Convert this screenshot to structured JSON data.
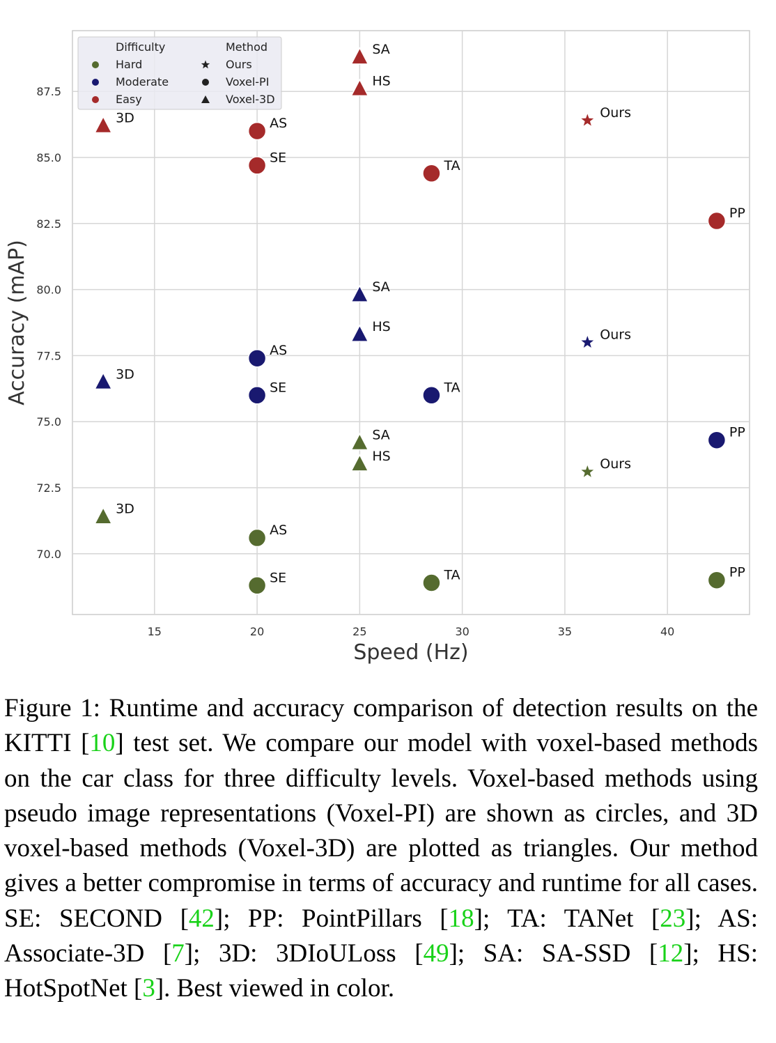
{
  "chart_data": {
    "type": "scatter",
    "xlabel": "Speed (Hz)",
    "ylabel": "Accuracy (mAP)",
    "xlim": [
      11,
      44
    ],
    "ylim": [
      67.7,
      89.8
    ],
    "xticks": [
      15,
      20,
      25,
      30,
      35,
      40
    ],
    "yticks": [
      70.0,
      72.5,
      75.0,
      77.5,
      80.0,
      82.5,
      85.0,
      87.5
    ],
    "xtick_labels": [
      "15",
      "20",
      "25",
      "30",
      "35",
      "40"
    ],
    "ytick_labels": [
      "70.0",
      "72.5",
      "75.0",
      "77.5",
      "80.0",
      "82.5",
      "85.0",
      "87.5"
    ],
    "grid": true,
    "legend": {
      "placement": "top-left",
      "difficulty_title": "Difficulty",
      "method_title": "Method",
      "difficulty": [
        {
          "name": "Hard",
          "color": "#556b2f"
        },
        {
          "name": "Moderate",
          "color": "#191970"
        },
        {
          "name": "Easy",
          "color": "#a52a2a"
        }
      ],
      "methods": [
        {
          "name": "Ours",
          "marker": "star"
        },
        {
          "name": "Voxel-PI",
          "marker": "circle"
        },
        {
          "name": "Voxel-3D",
          "marker": "triangle"
        }
      ]
    },
    "series": [
      {
        "name": "Easy",
        "color": "#a52a2a",
        "points": [
          {
            "label": "3D",
            "x": 12.5,
            "y": 86.2,
            "method": "Voxel-3D"
          },
          {
            "label": "AS",
            "x": 20.0,
            "y": 86.0,
            "method": "Voxel-PI"
          },
          {
            "label": "SE",
            "x": 20.0,
            "y": 84.7,
            "method": "Voxel-PI"
          },
          {
            "label": "SA",
            "x": 25.0,
            "y": 88.8,
            "method": "Voxel-3D"
          },
          {
            "label": "HS",
            "x": 25.0,
            "y": 87.6,
            "method": "Voxel-3D"
          },
          {
            "label": "TA",
            "x": 28.5,
            "y": 84.4,
            "method": "Voxel-PI"
          },
          {
            "label": "Ours",
            "x": 36.1,
            "y": 86.4,
            "method": "Ours"
          },
          {
            "label": "PP",
            "x": 42.4,
            "y": 82.6,
            "method": "Voxel-PI"
          }
        ]
      },
      {
        "name": "Moderate",
        "color": "#191970",
        "points": [
          {
            "label": "3D",
            "x": 12.5,
            "y": 76.5,
            "method": "Voxel-3D"
          },
          {
            "label": "AS",
            "x": 20.0,
            "y": 77.4,
            "method": "Voxel-PI"
          },
          {
            "label": "SE",
            "x": 20.0,
            "y": 76.0,
            "method": "Voxel-PI"
          },
          {
            "label": "SA",
            "x": 25.0,
            "y": 79.8,
            "method": "Voxel-3D"
          },
          {
            "label": "HS",
            "x": 25.0,
            "y": 78.3,
            "method": "Voxel-3D"
          },
          {
            "label": "TA",
            "x": 28.5,
            "y": 76.0,
            "method": "Voxel-PI"
          },
          {
            "label": "Ours",
            "x": 36.1,
            "y": 78.0,
            "method": "Ours"
          },
          {
            "label": "PP",
            "x": 42.4,
            "y": 74.3,
            "method": "Voxel-PI"
          }
        ]
      },
      {
        "name": "Hard",
        "color": "#556b2f",
        "points": [
          {
            "label": "3D",
            "x": 12.5,
            "y": 71.4,
            "method": "Voxel-3D"
          },
          {
            "label": "AS",
            "x": 20.0,
            "y": 70.6,
            "method": "Voxel-PI"
          },
          {
            "label": "SE",
            "x": 20.0,
            "y": 68.8,
            "method": "Voxel-PI"
          },
          {
            "label": "SA",
            "x": 25.0,
            "y": 74.2,
            "method": "Voxel-3D"
          },
          {
            "label": "HS",
            "x": 25.0,
            "y": 73.4,
            "method": "Voxel-3D"
          },
          {
            "label": "TA",
            "x": 28.5,
            "y": 68.9,
            "method": "Voxel-PI"
          },
          {
            "label": "Ours",
            "x": 36.1,
            "y": 73.1,
            "method": "Ours"
          },
          {
            "label": "PP",
            "x": 42.4,
            "y": 69.0,
            "method": "Voxel-PI"
          }
        ]
      }
    ]
  },
  "caption": {
    "prefix": "Figure 1: Runtime and accuracy comparison of detection results on the KITTI [",
    "cite_kitti": "10",
    "part1": "] test set. We compare our model with voxel-based methods on the car class for three difficulty levels. Voxel-based methods using pseudo image representations (Voxel-PI) are shown as circles, and 3D voxel-based methods (Voxel-3D) are plotted as triangles. Our method gives a better compromise in terms of accuracy and runtime for all cases. SE: SECOND [",
    "cite_second": "42",
    "part2": "]; PP: PointPillars [",
    "cite_pointpillars": "18",
    "part3": "]; TA: TANet [",
    "cite_tanet": "23",
    "part4": "]; AS: Associate-3D [",
    "cite_associate": "7",
    "part5": "]; 3D: 3DIoULoss [",
    "cite_3diou": "49",
    "part6": "]; SA: SA-SSD [",
    "cite_sassd": "12",
    "part7": "]; HS: HotSpotNet [",
    "cite_hotspot": "3",
    "part8": "]. Best viewed in color."
  }
}
